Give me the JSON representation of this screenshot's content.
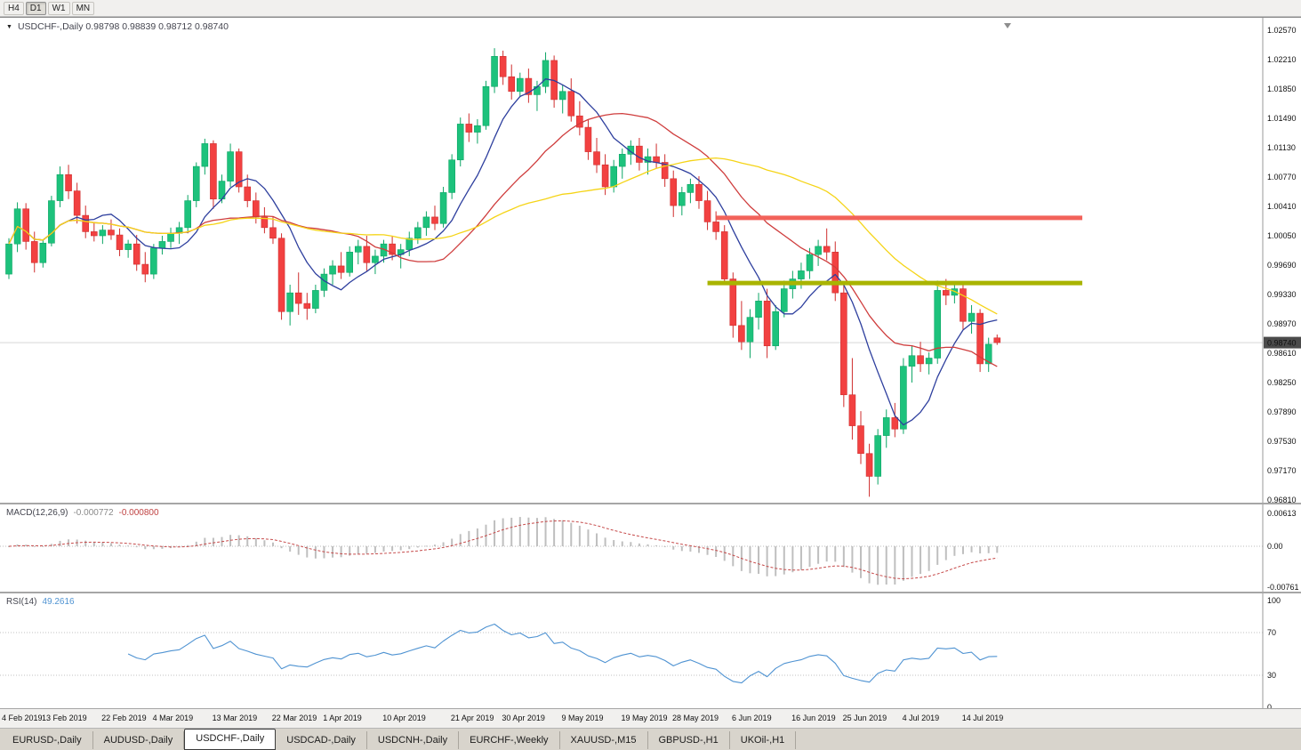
{
  "toolbar": {
    "timeframes": [
      {
        "label": "H4",
        "active": false
      },
      {
        "label": "D1",
        "active": true
      },
      {
        "label": "W1",
        "active": false
      },
      {
        "label": "MN",
        "active": false
      }
    ]
  },
  "chart": {
    "title": {
      "text": "USDCHF-,Daily 0.98798 0.98839 0.98712 0.98740"
    },
    "ohlc_display": {
      "open": "0.98798",
      "high": "0.98839",
      "low": "0.98712",
      "close": "0.98740"
    },
    "current_price": "0.98740",
    "price_axis": [
      "1.02570",
      "1.02210",
      "1.01850",
      "1.01490",
      "1.01130",
      "1.00770",
      "1.00410",
      "1.00050",
      "0.99690",
      "0.99330",
      "0.98970",
      "0.98610",
      "0.98250",
      "0.97890",
      "0.97530",
      "0.97170",
      "0.96810"
    ]
  },
  "macd": {
    "label": "MACD(12,26,9)",
    "value_main": "-0.000772",
    "value_signal": "-0.000800",
    "axis_top": "0.00613",
    "axis_zero": "0.00",
    "axis_bottom": "-0.00761"
  },
  "rsi": {
    "label": "RSI(14)",
    "value": "49.2616",
    "axis": [
      "100",
      "70",
      "30",
      "0"
    ]
  },
  "time_axis": [
    {
      "text": "4 Feb 2019",
      "index": 0
    },
    {
      "text": "13 Feb 2019",
      "index": 7
    },
    {
      "text": "22 Feb 2019",
      "index": 14
    },
    {
      "text": "4 Mar 2019",
      "index": 20
    },
    {
      "text": "13 Mar 2019",
      "index": 27
    },
    {
      "text": "22 Mar 2019",
      "index": 34
    },
    {
      "text": "1 Apr 2019",
      "index": 40
    },
    {
      "text": "10 Apr 2019",
      "index": 47
    },
    {
      "text": "21 Apr 2019",
      "index": 55
    },
    {
      "text": "30 Apr 2019",
      "index": 61
    },
    {
      "text": "9 May 2019",
      "index": 68
    },
    {
      "text": "19 May 2019",
      "index": 75
    },
    {
      "text": "28 May 2019",
      "index": 81
    },
    {
      "text": "6 Jun 2019",
      "index": 88
    },
    {
      "text": "16 Jun 2019",
      "index": 95
    },
    {
      "text": "25 Jun 2019",
      "index": 101
    },
    {
      "text": "4 Jul 2019",
      "index": 108
    },
    {
      "text": "14 Jul 2019",
      "index": 115
    }
  ],
  "tabs": [
    {
      "label": "EURUSD-,Daily",
      "active": false
    },
    {
      "label": "AUDUSD-,Daily",
      "active": false
    },
    {
      "label": "USDCHF-,Daily",
      "active": true
    },
    {
      "label": "USDCAD-,Daily",
      "active": false
    },
    {
      "label": "USDCNH-,Daily",
      "active": false
    },
    {
      "label": "EURCHF-,Weekly",
      "active": false
    },
    {
      "label": "XAUUSD-,M15",
      "active": false
    },
    {
      "label": "GBPUSD-,H1",
      "active": false
    },
    {
      "label": "UKOil-,H1",
      "active": false
    }
  ],
  "chart_data": {
    "type": "candlestick",
    "symbol": "USDCHF-",
    "timeframe": "Daily",
    "last_ohlc": {
      "open": 0.98798,
      "high": 0.98839,
      "low": 0.98712,
      "close": 0.9874
    },
    "price_scale": {
      "top": 1.0257,
      "step": 0.0036,
      "bottom": 0.9681
    },
    "ohlc": [
      [
        0.9958,
        1.0002,
        0.9952,
        0.9995
      ],
      [
        0.9995,
        1.0046,
        0.9985,
        1.0038
      ],
      [
        1.0038,
        1.0045,
        0.9988,
        0.9998
      ],
      [
        0.9998,
        1.001,
        0.996,
        0.9972
      ],
      [
        0.9972,
        1.0,
        0.9966,
        0.9996
      ],
      [
        0.9996,
        1.0054,
        0.9992,
        1.0048
      ],
      [
        1.0048,
        1.009,
        1.004,
        1.008
      ],
      [
        1.008,
        1.0092,
        1.005,
        1.006
      ],
      [
        1.006,
        1.007,
        1.002,
        1.003
      ],
      [
        1.003,
        1.0042,
        1.0002,
        1.001
      ],
      [
        1.001,
        1.0022,
        0.9998,
        1.0005
      ],
      [
        1.0005,
        1.0018,
        0.9995,
        1.0012
      ],
      [
        1.0012,
        1.0025,
        1.0,
        1.0006
      ],
      [
        1.0006,
        1.0014,
        0.998,
        0.9988
      ],
      [
        0.9988,
        1.0,
        0.9978,
        0.9995
      ],
      [
        0.9995,
        1.0006,
        0.9962,
        0.997
      ],
      [
        0.997,
        0.9985,
        0.9948,
        0.9958
      ],
      [
        0.9958,
        0.9995,
        0.9952,
        0.999
      ],
      [
        0.999,
        1.0005,
        0.9982,
        0.9998
      ],
      [
        0.9998,
        1.0015,
        0.999,
        1.0008
      ],
      [
        1.0008,
        1.0022,
        0.9995,
        1.0015
      ],
      [
        1.0015,
        1.0055,
        1.0008,
        1.0048
      ],
      [
        1.0048,
        1.0095,
        1.004,
        1.009
      ],
      [
        1.009,
        1.0124,
        1.008,
        1.0118
      ],
      [
        1.0118,
        1.0122,
        1.0038,
        1.005
      ],
      [
        1.005,
        1.008,
        1.0045,
        1.0072
      ],
      [
        1.0072,
        1.0118,
        1.0065,
        1.0108
      ],
      [
        1.0108,
        1.0112,
        1.0058,
        1.0065
      ],
      [
        1.0065,
        1.008,
        1.004,
        1.0048
      ],
      [
        1.0048,
        1.0058,
        1.002,
        1.0028
      ],
      [
        1.0028,
        1.004,
        1.0008,
        1.0015
      ],
      [
        1.0015,
        1.0028,
        0.9995,
        1.0002
      ],
      [
        1.0002,
        1.0008,
        0.9902,
        0.9912
      ],
      [
        0.9912,
        0.9945,
        0.9895,
        0.9935
      ],
      [
        0.9935,
        0.996,
        0.9908,
        0.9922
      ],
      [
        0.9922,
        0.9935,
        0.9902,
        0.9916
      ],
      [
        0.9916,
        0.9945,
        0.991,
        0.9938
      ],
      [
        0.9938,
        0.9965,
        0.993,
        0.9958
      ],
      [
        0.9958,
        0.9975,
        0.9945,
        0.9968
      ],
      [
        0.9968,
        0.9985,
        0.9952,
        0.996
      ],
      [
        0.996,
        0.9992,
        0.9955,
        0.9985
      ],
      [
        0.9985,
        1.0,
        0.997,
        0.9992
      ],
      [
        0.9992,
        1.0005,
        0.9962,
        0.9972
      ],
      [
        0.9972,
        0.9988,
        0.9958,
        0.998
      ],
      [
        0.998,
        1.0,
        0.9972,
        0.9995
      ],
      [
        0.9995,
        1.0005,
        0.9975,
        0.9982
      ],
      [
        0.9982,
        0.9995,
        0.9965,
        0.9988
      ],
      [
        0.9988,
        1.001,
        0.998,
        1.0002
      ],
      [
        1.0002,
        1.0022,
        0.9995,
        1.0015
      ],
      [
        1.0015,
        1.0035,
        1.0005,
        1.0028
      ],
      [
        1.0028,
        1.0042,
        1.0012,
        1.002
      ],
      [
        1.002,
        1.0065,
        1.0015,
        1.0058
      ],
      [
        1.0058,
        1.0105,
        1.005,
        1.0098
      ],
      [
        1.0098,
        1.015,
        1.009,
        1.0142
      ],
      [
        1.0142,
        1.0155,
        1.012,
        1.0132
      ],
      [
        1.0132,
        1.0148,
        1.0118,
        1.014
      ],
      [
        1.014,
        1.0195,
        1.0135,
        1.0188
      ],
      [
        1.0188,
        1.0235,
        1.018,
        1.0225
      ],
      [
        1.0225,
        1.0232,
        1.019,
        1.02
      ],
      [
        1.02,
        1.0215,
        1.0172,
        1.0182
      ],
      [
        1.0182,
        1.0205,
        1.0175,
        1.0198
      ],
      [
        1.0198,
        1.021,
        1.0168,
        1.0178
      ],
      [
        1.0178,
        1.0195,
        1.0158,
        1.0188
      ],
      [
        1.0188,
        1.023,
        1.018,
        1.022
      ],
      [
        1.022,
        1.0226,
        1.0162,
        1.0172
      ],
      [
        1.0172,
        1.019,
        1.0155,
        1.0182
      ],
      [
        1.0182,
        1.0198,
        1.0145,
        1.0152
      ],
      [
        1.0152,
        1.017,
        1.0128,
        1.0138
      ],
      [
        1.0138,
        1.0148,
        1.0098,
        1.0108
      ],
      [
        1.0108,
        1.0125,
        1.0082,
        1.0092
      ],
      [
        1.0092,
        1.0105,
        1.0055,
        1.0065
      ],
      [
        1.0065,
        1.0098,
        1.0058,
        1.009
      ],
      [
        1.009,
        1.0112,
        1.0075,
        1.0105
      ],
      [
        1.0105,
        1.0122,
        1.0092,
        1.0115
      ],
      [
        1.0115,
        1.0125,
        1.0085,
        1.0095
      ],
      [
        1.0095,
        1.0112,
        1.008,
        1.0102
      ],
      [
        1.0102,
        1.0118,
        1.0088,
        1.0095
      ],
      [
        1.0095,
        1.0105,
        1.0065,
        1.0075
      ],
      [
        1.0075,
        1.0085,
        1.0028,
        1.0042
      ],
      [
        1.0042,
        1.0065,
        1.003,
        1.0058
      ],
      [
        1.0058,
        1.0075,
        1.0045,
        1.0068
      ],
      [
        1.0068,
        1.0078,
        1.0038,
        1.0048
      ],
      [
        1.0048,
        1.006,
        1.0012,
        1.0022
      ],
      [
        1.0022,
        1.0035,
        1.0,
        1.001
      ],
      [
        1.001,
        1.0018,
        0.9945,
        0.9952
      ],
      [
        0.9952,
        0.996,
        0.988,
        0.9895
      ],
      [
        0.9895,
        0.9925,
        0.9865,
        0.9875
      ],
      [
        0.9875,
        0.9915,
        0.9855,
        0.9905
      ],
      [
        0.9905,
        0.9935,
        0.989,
        0.9925
      ],
      [
        0.9925,
        0.994,
        0.9855,
        0.987
      ],
      [
        0.987,
        0.992,
        0.9865,
        0.9912
      ],
      [
        0.9912,
        0.995,
        0.9905,
        0.994
      ],
      [
        0.994,
        0.9962,
        0.9928,
        0.9952
      ],
      [
        0.9952,
        0.9972,
        0.994,
        0.9962
      ],
      [
        0.9962,
        0.999,
        0.9952,
        0.9982
      ],
      [
        0.9982,
        1.0,
        0.9968,
        0.9992
      ],
      [
        0.9992,
        1.0014,
        0.9975,
        0.9985
      ],
      [
        0.9985,
        0.9998,
        0.9925,
        0.9935
      ],
      [
        0.9935,
        0.9945,
        0.9795,
        0.981
      ],
      [
        0.981,
        0.9855,
        0.9755,
        0.9772
      ],
      [
        0.9772,
        0.979,
        0.9725,
        0.9738
      ],
      [
        0.9738,
        0.975,
        0.9685,
        0.971
      ],
      [
        0.971,
        0.9768,
        0.97,
        0.976
      ],
      [
        0.976,
        0.9792,
        0.9745,
        0.9782
      ],
      [
        0.9782,
        0.98,
        0.9758,
        0.9768
      ],
      [
        0.9768,
        0.9855,
        0.9762,
        0.9845
      ],
      [
        0.9845,
        0.987,
        0.9825,
        0.9858
      ],
      [
        0.9858,
        0.9875,
        0.9838,
        0.9848
      ],
      [
        0.9848,
        0.9862,
        0.9835,
        0.9855
      ],
      [
        0.9855,
        0.995,
        0.9848,
        0.9938
      ],
      [
        0.9938,
        0.9952,
        0.992,
        0.9932
      ],
      [
        0.9932,
        0.9948,
        0.9922,
        0.994
      ],
      [
        0.994,
        0.9945,
        0.989,
        0.99
      ],
      [
        0.99,
        0.992,
        0.9885,
        0.991
      ],
      [
        0.991,
        0.9915,
        0.9838,
        0.9848
      ],
      [
        0.9848,
        0.988,
        0.9838,
        0.9872
      ],
      [
        0.98798,
        0.98839,
        0.98712,
        0.9874
      ]
    ],
    "moving_averages": [
      {
        "period": 8,
        "color": "#2e3f9e"
      },
      {
        "period": 20,
        "color": "#cf3d3d"
      },
      {
        "period": 40,
        "color": "#f5d417"
      }
    ],
    "levels": [
      {
        "type": "resistance",
        "price": 1.0027,
        "color": "#f2625a",
        "thickness": 5,
        "from_index": 83,
        "to_index": 126
      },
      {
        "type": "support",
        "price": 0.9947,
        "color": "#a9b400",
        "thickness": 5,
        "from_index": 82,
        "to_index": 126
      }
    ],
    "indicators": {
      "macd": {
        "fast": 12,
        "slow": 26,
        "signal_period": 9,
        "value": -0.000772,
        "signal_value": -0.0008,
        "axis_max": 0.00613,
        "axis_min": -0.00761,
        "hist_color": "#bfbfbf",
        "signal_color": "#c64a4a"
      },
      "rsi": {
        "period": 14,
        "value": 49.2616,
        "color": "#4f93d2",
        "levels": [
          70,
          30
        ]
      }
    },
    "colors": {
      "up": "#1dc27c",
      "down": "#f24141",
      "up_border": "#0ca565",
      "down_border": "#cf2e2e",
      "background": "#ffffff"
    }
  }
}
